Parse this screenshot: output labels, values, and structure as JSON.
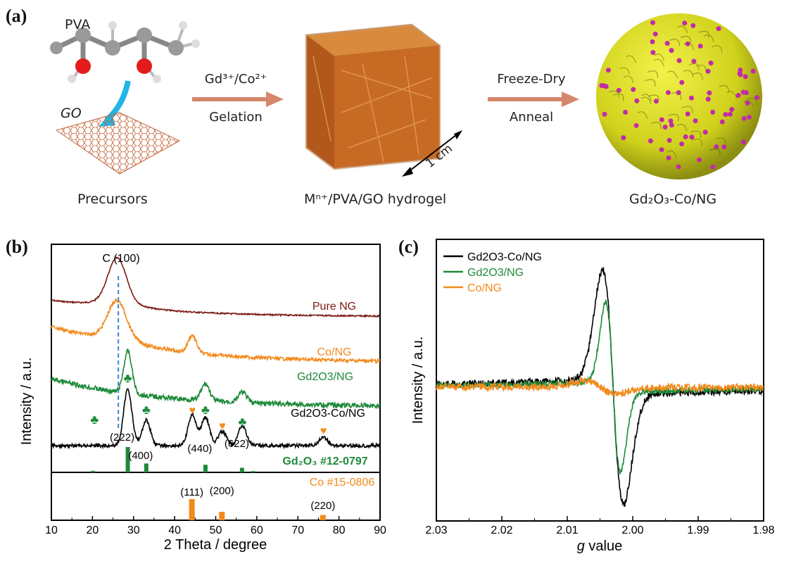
{
  "panel_a": {
    "label": "(a)",
    "pva": "PVA",
    "go": "GO",
    "precursors": "Precursors",
    "step1_top": "Gd³⁺/Co²⁺",
    "step1_bottom": "Gelation",
    "hydrogel": "Mⁿ⁺/PVA/GO hydrogel",
    "scale": "1 cm",
    "step2_top": "Freeze-Dry",
    "step2_bottom": "Anneal",
    "product": "Gd₂O₃-Co/NG"
  },
  "colors": {
    "pure_ng": "#7b1a14",
    "co_ng": "#f28a1c",
    "gd2o3_ng": "#1e8a3a",
    "gd2o3_co_ng": "#000000",
    "ref_gd": "#1e8a3a",
    "ref_co": "#f28a1c",
    "dashed": "#3a87d8"
  },
  "chart_data": [
    {
      "panel": "(b)",
      "type": "line",
      "xlabel": "2 Theta / degree",
      "ylabel": "Intensity / a.u.",
      "xlim": [
        10,
        90
      ],
      "xticks": [
        "10",
        "20",
        "30",
        "40",
        "50",
        "60",
        "70",
        "80",
        "90"
      ],
      "series": [
        {
          "name": "Pure NG",
          "peaks": [
            [
              26,
              1.0
            ]
          ],
          "baseline": "decaying"
        },
        {
          "name": "Co/NG",
          "peaks": [
            [
              26,
              1.0
            ],
            [
              44.3,
              0.5
            ]
          ],
          "baseline": "decaying"
        },
        {
          "name": "Gd2O3/NG",
          "peaks": [
            [
              28.6,
              1.0
            ],
            [
              47.5,
              0.4
            ],
            [
              56.5,
              0.25
            ]
          ],
          "baseline": "decaying"
        },
        {
          "name": "Gd2O3-Co/NG",
          "peaks": [
            [
              28.6,
              1.0
            ],
            [
              33.1,
              0.45
            ],
            [
              44.3,
              0.55
            ],
            [
              47.5,
              0.5
            ],
            [
              51.6,
              0.25
            ],
            [
              56.5,
              0.35
            ],
            [
              76.2,
              0.15
            ]
          ],
          "baseline": "flat"
        }
      ],
      "annotations": {
        "c100": "C (100)",
        "gd_hkl": [
          {
            "text": "(222)",
            "x": 28.6
          },
          {
            "text": "(400)",
            "x": 33.1
          },
          {
            "text": "(440)",
            "x": 47.5
          },
          {
            "text": "(622)",
            "x": 56.5
          }
        ],
        "co_hkl": [
          {
            "text": "(111)",
            "x": 44.2
          },
          {
            "text": "(200)",
            "x": 51.5
          },
          {
            "text": "(220)",
            "x": 76.1
          }
        ],
        "gd_markers": [
          20.5,
          28.6,
          33.1,
          47.5,
          56.5
        ],
        "co_markers": [
          44.3,
          51.6,
          76.2
        ]
      },
      "references": [
        {
          "name": "Gd₂O₃ #12-0797",
          "bars": [
            [
              20.1,
              0.06
            ],
            [
              28.6,
              1.0
            ],
            [
              33.1,
              0.35
            ],
            [
              47.5,
              0.3
            ],
            [
              56.4,
              0.18
            ],
            [
              59.1,
              0.05
            ]
          ]
        },
        {
          "name": "Co #15-0806",
          "bars": [
            [
              44.2,
              1.0
            ],
            [
              51.5,
              0.4
            ],
            [
              76.1,
              0.25
            ]
          ]
        }
      ]
    },
    {
      "panel": "(c)",
      "type": "line",
      "xlabel": "g value",
      "ylabel": "Intensity / a.u.",
      "xlim": [
        2.03,
        1.98
      ],
      "xticks": [
        "2.03",
        "2.02",
        "2.01",
        "2.00",
        "1.99",
        "1.98"
      ],
      "legend_placement": "top-left",
      "series": [
        {
          "name": "Gd2O3-Co/NG",
          "g_center": 2.003,
          "amplitude": 1.0
        },
        {
          "name": "Gd2O3/NG",
          "g_center": 2.003,
          "amplitude": 0.7
        },
        {
          "name": "Co/NG",
          "g_center": 2.005,
          "amplitude": 0.03
        }
      ]
    }
  ]
}
